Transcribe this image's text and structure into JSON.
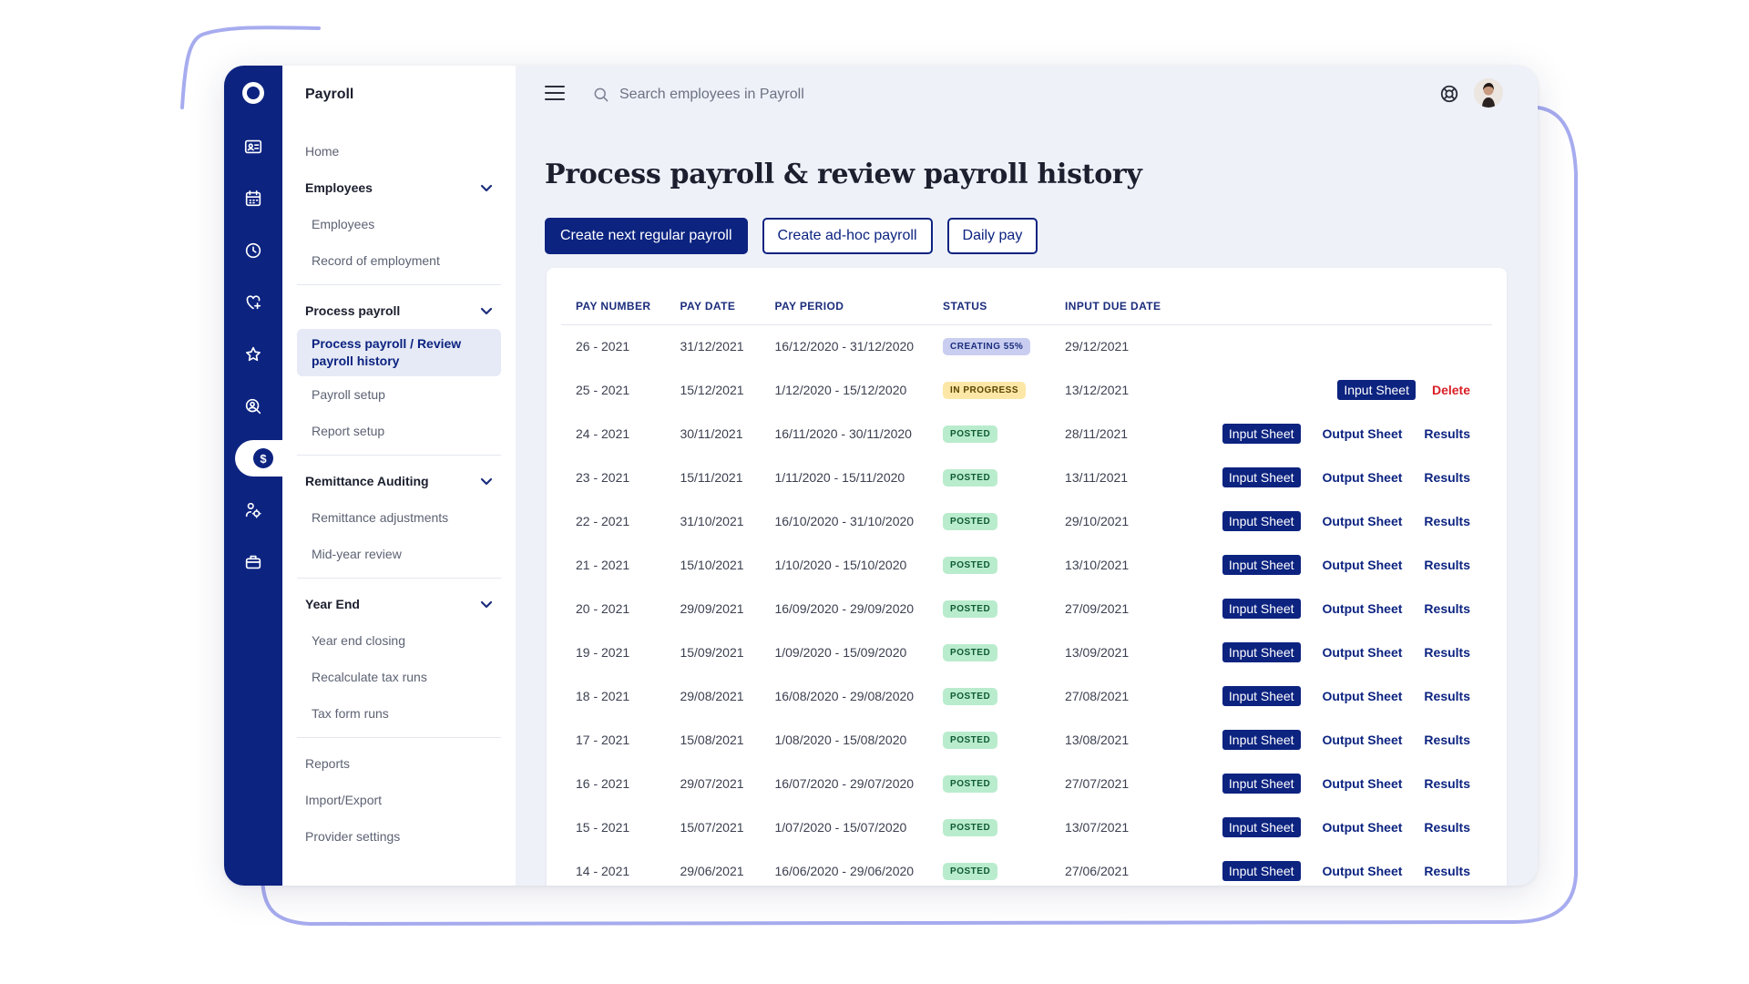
{
  "nav": {
    "title": "Payroll",
    "home": "Home",
    "groups": [
      {
        "label": "Employees",
        "items": [
          "Employees",
          "Record of employment"
        ]
      },
      {
        "label": "Process payroll",
        "items": [
          "Process payroll / Review payroll history",
          "Payroll setup",
          "Report setup"
        ],
        "active_index": 0
      },
      {
        "label": "Remittance Auditing",
        "items": [
          "Remittance adjustments",
          "Mid-year review"
        ]
      },
      {
        "label": "Year End",
        "items": [
          "Year end closing",
          "Recalculate tax runs",
          "Tax form runs"
        ]
      }
    ],
    "bottom": [
      "Reports",
      "Import/Export",
      "Provider settings"
    ]
  },
  "rail": {
    "icons": [
      "id-card-icon",
      "calendar-icon",
      "clock-icon",
      "heart-plus-icon",
      "star-icon",
      "user-search-icon",
      "dollar-icon",
      "person-gear-icon",
      "briefcase-icon"
    ],
    "active": "dollar-icon"
  },
  "search": {
    "placeholder": "Search employees in Payroll"
  },
  "page": {
    "title": "Process payroll & review payroll history",
    "buttons": {
      "next_regular": "Create next regular payroll",
      "adhoc": "Create ad-hoc payroll",
      "daily": "Daily pay"
    }
  },
  "table": {
    "headers": {
      "pay_number": "PAY NUMBER",
      "pay_date": "PAY DATE",
      "pay_period": "PAY PERIOD",
      "status": "STATUS",
      "input_due": "INPUT DUE DATE"
    },
    "action_labels": {
      "input": "Input Sheet",
      "output": "Output Sheet",
      "results": "Results",
      "delete": "Delete"
    },
    "rows": [
      {
        "pay_number": "26 - 2021",
        "pay_date": "31/12/2021",
        "pay_period": "16/12/2020 - 31/12/2020",
        "status": "CREATING 55%",
        "status_kind": "creating",
        "input_due": "29/12/2021",
        "actions": []
      },
      {
        "pay_number": "25 - 2021",
        "pay_date": "15/12/2021",
        "pay_period": "1/12/2020 - 15/12/2020",
        "status": "IN PROGRESS",
        "status_kind": "progress",
        "input_due": "13/12/2021",
        "actions": [
          "input",
          "delete"
        ]
      },
      {
        "pay_number": "24 - 2021",
        "pay_date": "30/11/2021",
        "pay_period": "16/11/2020 - 30/11/2020",
        "status": "POSTED",
        "status_kind": "posted",
        "input_due": "28/11/2021",
        "actions": [
          "input",
          "output",
          "results"
        ]
      },
      {
        "pay_number": "23 - 2021",
        "pay_date": "15/11/2021",
        "pay_period": "1/11/2020 - 15/11/2020",
        "status": "POSTED",
        "status_kind": "posted",
        "input_due": "13/11/2021",
        "actions": [
          "input",
          "output",
          "results"
        ]
      },
      {
        "pay_number": "22 - 2021",
        "pay_date": "31/10/2021",
        "pay_period": "16/10/2020 - 31/10/2020",
        "status": "POSTED",
        "status_kind": "posted",
        "input_due": "29/10/2021",
        "actions": [
          "input",
          "output",
          "results"
        ]
      },
      {
        "pay_number": "21 - 2021",
        "pay_date": "15/10/2021",
        "pay_period": "1/10/2020 - 15/10/2020",
        "status": "POSTED",
        "status_kind": "posted",
        "input_due": "13/10/2021",
        "actions": [
          "input",
          "output",
          "results"
        ]
      },
      {
        "pay_number": "20 - 2021",
        "pay_date": "29/09/2021",
        "pay_period": "16/09/2020 - 29/09/2020",
        "status": "POSTED",
        "status_kind": "posted",
        "input_due": "27/09/2021",
        "actions": [
          "input",
          "output",
          "results"
        ]
      },
      {
        "pay_number": "19 - 2021",
        "pay_date": "15/09/2021",
        "pay_period": "1/09/2020 - 15/09/2020",
        "status": "POSTED",
        "status_kind": "posted",
        "input_due": "13/09/2021",
        "actions": [
          "input",
          "output",
          "results"
        ]
      },
      {
        "pay_number": "18 - 2021",
        "pay_date": "29/08/2021",
        "pay_period": "16/08/2020 - 29/08/2020",
        "status": "POSTED",
        "status_kind": "posted",
        "input_due": "27/08/2021",
        "actions": [
          "input",
          "output",
          "results"
        ]
      },
      {
        "pay_number": "17 - 2021",
        "pay_date": "15/08/2021",
        "pay_period": "1/08/2020 - 15/08/2020",
        "status": "POSTED",
        "status_kind": "posted",
        "input_due": "13/08/2021",
        "actions": [
          "input",
          "output",
          "results"
        ]
      },
      {
        "pay_number": "16 - 2021",
        "pay_date": "29/07/2021",
        "pay_period": "16/07/2020 - 29/07/2020",
        "status": "POSTED",
        "status_kind": "posted",
        "input_due": "27/07/2021",
        "actions": [
          "input",
          "output",
          "results"
        ]
      },
      {
        "pay_number": "15 - 2021",
        "pay_date": "15/07/2021",
        "pay_period": "1/07/2020 - 15/07/2020",
        "status": "POSTED",
        "status_kind": "posted",
        "input_due": "13/07/2021",
        "actions": [
          "input",
          "output",
          "results"
        ]
      },
      {
        "pay_number": "14 - 2021",
        "pay_date": "29/06/2021",
        "pay_period": "16/06/2020 - 29/06/2020",
        "status": "POSTED",
        "status_kind": "posted",
        "input_due": "27/06/2021",
        "actions": [
          "input",
          "output",
          "results"
        ]
      }
    ]
  },
  "colors": {
    "brand": "#0c2380",
    "delete": "#d91f26",
    "frame_accent": "#a7acef"
  }
}
